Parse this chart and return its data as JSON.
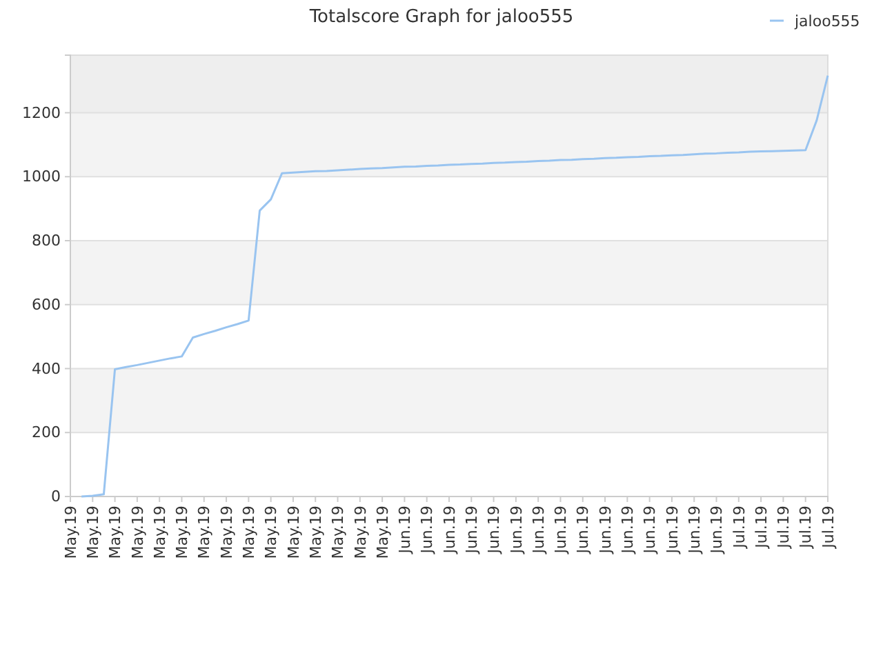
{
  "chart_data": {
    "type": "line",
    "title": "Totalscore Graph for jaloo555",
    "categories": [
      "May.19",
      null,
      "May.19",
      null,
      "May.19",
      null,
      "May.19",
      null,
      "May.19",
      null,
      "May.19",
      null,
      "May.19",
      null,
      "May.19",
      null,
      "May.19",
      null,
      "May.19",
      null,
      "May.19",
      null,
      "May.19",
      null,
      "May.19",
      null,
      "May.19",
      null,
      "May.19",
      null,
      "Jun.19",
      null,
      "Jun.19",
      null,
      "Jun.19",
      null,
      "Jun.19",
      null,
      "Jun.19",
      null,
      "Jun.19",
      null,
      "Jun.19",
      null,
      "Jun.19",
      null,
      "Jun.19",
      null,
      "Jun.19",
      null,
      "Jun.19",
      null,
      "Jun.19",
      null,
      "Jun.19",
      null,
      "Jun.19",
      null,
      "Jun.19",
      null,
      "Jul.19",
      null,
      "Jul.19",
      null,
      "Jul.19",
      null,
      "Jul.19",
      null,
      "Jul.19"
    ],
    "ylim": [
      0,
      1380
    ],
    "yticks": [
      0,
      200,
      400,
      600,
      800,
      1000,
      1200
    ],
    "bands": [
      {
        "axis": "y",
        "from": 1200,
        "to": 1380,
        "color": "#eeeeee"
      }
    ],
    "grid": "y",
    "legend": "top right",
    "marker": "none",
    "line_style": "solid",
    "series": [
      {
        "name": "jaloo555",
        "color": "#99c4f0",
        "values": [
          null,
          0,
          2,
          7,
          398,
          405,
          411,
          418,
          425,
          432,
          438,
          497,
          508,
          518,
          529,
          539,
          550,
          894,
          929,
          1011,
          1013,
          1015,
          1017,
          1018,
          1020,
          1022,
          1024,
          1026,
          1027,
          1029,
          1031,
          1032,
          1034,
          1035,
          1037,
          1038,
          1040,
          1041,
          1043,
          1044,
          1046,
          1047,
          1049,
          1050,
          1052,
          1053,
          1055,
          1056,
          1058,
          1059,
          1061,
          1062,
          1064,
          1065,
          1067,
          1068,
          1070,
          1072,
          1073,
          1075,
          1076,
          1078,
          1079,
          1080,
          1081,
          1082,
          1083,
          1176,
          1316
        ]
      }
    ]
  }
}
